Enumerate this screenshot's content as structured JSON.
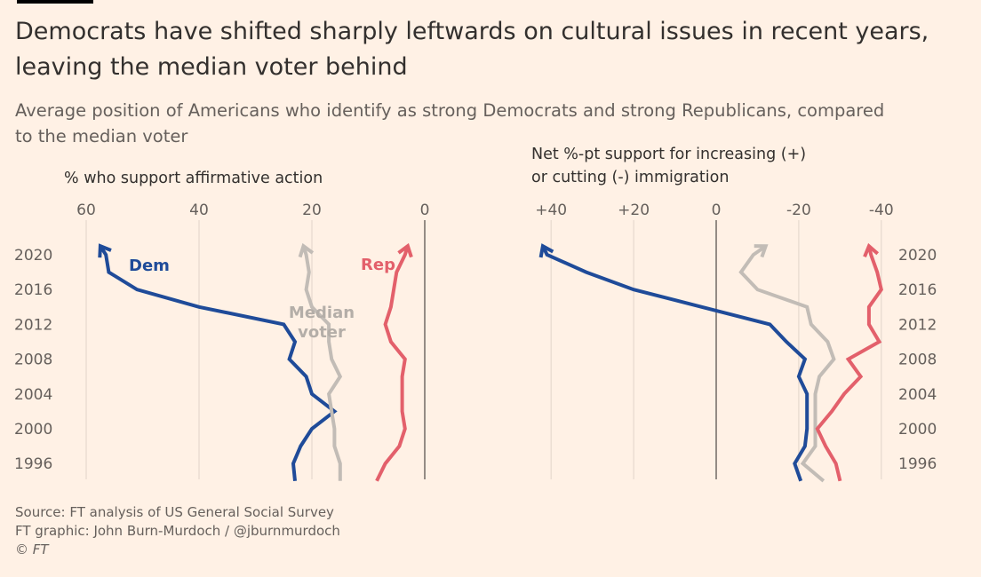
{
  "title": "Democrats have shifted sharply leftwards on cultural issues in recent years, leaving the median voter behind",
  "subtitle": "Average position of Americans who identify as strong Democrats and strong Republicans, compared to the median voter",
  "source_lines": [
    "Source: FT analysis of US General Social Survey",
    "FT graphic: John Burn-Murdoch / @jburnmurdoch",
    "© FT"
  ],
  "colors": {
    "background": "#fff1e5",
    "dem": "#1f4b99",
    "rep": "#e3606b",
    "median": "#c2bcb6",
    "grid": "#e6d9ce",
    "zero_line": "#66605c",
    "text": "#33302e",
    "subtext": "#66605c"
  },
  "chart_data": [
    {
      "type": "line",
      "title": "% who support affirmative action",
      "x_ticks": [
        60,
        40,
        20,
        0
      ],
      "x_tick_labels": [
        "60",
        "40",
        "20",
        "0"
      ],
      "xlim": [
        60,
        0
      ],
      "x_reversed": true,
      "y_ticks": [
        2020,
        2016,
        2012,
        2008,
        2004,
        2000,
        1996
      ],
      "y_tick_labels": [
        "2020",
        "2016",
        "2012",
        "2008",
        "2004",
        "2000",
        "1996"
      ],
      "ylim": [
        1994,
        2022
      ],
      "y_axis_position": "left",
      "grid": true,
      "series": [
        {
          "name": "Dem",
          "label": "Dem",
          "color_key": "dem",
          "points": [
            [
              1994,
              23
            ],
            [
              1996,
              23.3
            ],
            [
              1998,
              22
            ],
            [
              2000,
              20
            ],
            [
              2002,
              16
            ],
            [
              2004,
              20
            ],
            [
              2006,
              21
            ],
            [
              2008,
              24
            ],
            [
              2010,
              23
            ],
            [
              2012,
              25
            ],
            [
              2014,
              40
            ],
            [
              2016,
              51
            ],
            [
              2018,
              56
            ],
            [
              2020,
              56.5
            ],
            [
              2021,
              57.5
            ]
          ]
        },
        {
          "name": "Median voter",
          "label_lines": [
            "Median",
            "voter"
          ],
          "color_key": "median",
          "points": [
            [
              1994,
              15
            ],
            [
              1996,
              15
            ],
            [
              1998,
              16
            ],
            [
              2000,
              16
            ],
            [
              2002,
              16.5
            ],
            [
              2004,
              17
            ],
            [
              2006,
              15
            ],
            [
              2008,
              16.5
            ],
            [
              2010,
              17
            ],
            [
              2012,
              17
            ],
            [
              2014,
              20
            ],
            [
              2016,
              21
            ],
            [
              2018,
              20.5
            ],
            [
              2020,
              21
            ],
            [
              2021,
              21.5
            ]
          ]
        },
        {
          "name": "Rep",
          "label": "Rep",
          "color_key": "rep",
          "points": [
            [
              1994,
              8.5
            ],
            [
              1996,
              7
            ],
            [
              1998,
              4.5
            ],
            [
              2000,
              3.5
            ],
            [
              2002,
              4
            ],
            [
              2004,
              4
            ],
            [
              2006,
              4
            ],
            [
              2008,
              3.5
            ],
            [
              2010,
              6
            ],
            [
              2012,
              7
            ],
            [
              2014,
              6
            ],
            [
              2016,
              5.5
            ],
            [
              2018,
              5
            ],
            [
              2020,
              3.5
            ],
            [
              2021,
              3
            ]
          ]
        }
      ]
    },
    {
      "type": "line",
      "title": "Net %-pt support for increasing (+) or cutting (-) immigration",
      "title_lines": [
        "Net %-pt support for increasing (+)",
        "or cutting (-) immigration"
      ],
      "x_ticks": [
        40,
        20,
        0,
        -20,
        -40
      ],
      "x_tick_labels": [
        "+40",
        "+20",
        "0",
        "-20",
        "-40"
      ],
      "xlim": [
        45,
        -45
      ],
      "x_reversed": true,
      "y_ticks": [
        2020,
        2016,
        2012,
        2008,
        2004,
        2000,
        1996
      ],
      "y_tick_labels": [
        "2020",
        "2016",
        "2012",
        "2008",
        "2004",
        "2000",
        "1996"
      ],
      "ylim": [
        1994,
        2022
      ],
      "y_axis_position": "right",
      "grid": true,
      "series": [
        {
          "name": "Dem",
          "color_key": "dem",
          "points": [
            [
              1994,
              -20.5
            ],
            [
              1996,
              -19
            ],
            [
              1998,
              -21.5
            ],
            [
              2000,
              -22
            ],
            [
              2002,
              -22
            ],
            [
              2004,
              -22
            ],
            [
              2006,
              -20
            ],
            [
              2008,
              -21.5
            ],
            [
              2010,
              -17
            ],
            [
              2012,
              -13
            ],
            [
              2014,
              3.5
            ],
            [
              2016,
              20
            ],
            [
              2018,
              31.5
            ],
            [
              2020,
              41
            ],
            [
              2021,
              42
            ]
          ]
        },
        {
          "name": "Median voter",
          "color_key": "median",
          "points": [
            [
              1994,
              -26
            ],
            [
              1996,
              -21
            ],
            [
              1998,
              -24
            ],
            [
              2000,
              -24
            ],
            [
              2002,
              -24
            ],
            [
              2004,
              -24
            ],
            [
              2006,
              -25
            ],
            [
              2008,
              -28.5
            ],
            [
              2010,
              -27
            ],
            [
              2012,
              -23
            ],
            [
              2014,
              -22
            ],
            [
              2016,
              -10
            ],
            [
              2018,
              -6
            ],
            [
              2020,
              -9
            ],
            [
              2021,
              -12
            ]
          ]
        },
        {
          "name": "Rep",
          "color_key": "rep",
          "points": [
            [
              1994,
              -30
            ],
            [
              1996,
              -29
            ],
            [
              1998,
              -26.5
            ],
            [
              2000,
              -24.5
            ],
            [
              2002,
              -28
            ],
            [
              2004,
              -31
            ],
            [
              2006,
              -35
            ],
            [
              2008,
              -32
            ],
            [
              2010,
              -39.5
            ],
            [
              2012,
              -37
            ],
            [
              2014,
              -37
            ],
            [
              2016,
              -40
            ],
            [
              2018,
              -39
            ],
            [
              2020,
              -37.5
            ],
            [
              2021,
              -37
            ]
          ]
        }
      ]
    }
  ]
}
